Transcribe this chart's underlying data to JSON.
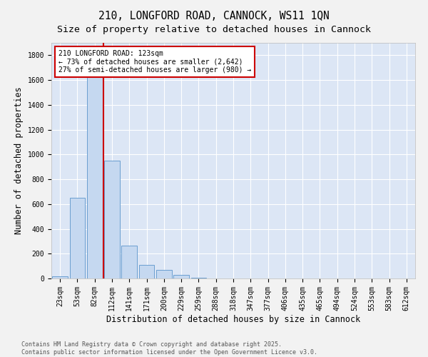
{
  "title_line1": "210, LONGFORD ROAD, CANNOCK, WS11 1QN",
  "title_line2": "Size of property relative to detached houses in Cannock",
  "xlabel": "Distribution of detached houses by size in Cannock",
  "ylabel": "Number of detached properties",
  "background_color": "#dce6f5",
  "bar_color": "#c5d8f0",
  "bar_edge_color": "#6a9fd0",
  "annotation_line_color": "#cc0000",
  "annotation_box_edge_color": "#cc0000",
  "annotation_text": "210 LONGFORD ROAD: 123sqm\n← 73% of detached houses are smaller (2,642)\n27% of semi-detached houses are larger (980) →",
  "footer_line1": "Contains HM Land Registry data © Crown copyright and database right 2025.",
  "footer_line2": "Contains public sector information licensed under the Open Government Licence v3.0.",
  "categories": [
    "23sqm",
    "53sqm",
    "82sqm",
    "112sqm",
    "141sqm",
    "171sqm",
    "200sqm",
    "229sqm",
    "259sqm",
    "288sqm",
    "318sqm",
    "347sqm",
    "377sqm",
    "406sqm",
    "435sqm",
    "465sqm",
    "494sqm",
    "524sqm",
    "553sqm",
    "583sqm",
    "612sqm"
  ],
  "values": [
    20,
    650,
    1700,
    950,
    265,
    110,
    70,
    30,
    5,
    0,
    0,
    0,
    0,
    0,
    0,
    0,
    0,
    0,
    0,
    0,
    0
  ],
  "subject_bin_index": 3,
  "ylim": [
    0,
    1900
  ],
  "yticks": [
    0,
    200,
    400,
    600,
    800,
    1000,
    1200,
    1400,
    1600,
    1800
  ],
  "grid_color": "#ffffff",
  "title_fontsize": 10.5,
  "subtitle_fontsize": 9.5,
  "tick_fontsize": 7,
  "label_fontsize": 8.5,
  "footer_fontsize": 6,
  "fig_facecolor": "#f2f2f2"
}
